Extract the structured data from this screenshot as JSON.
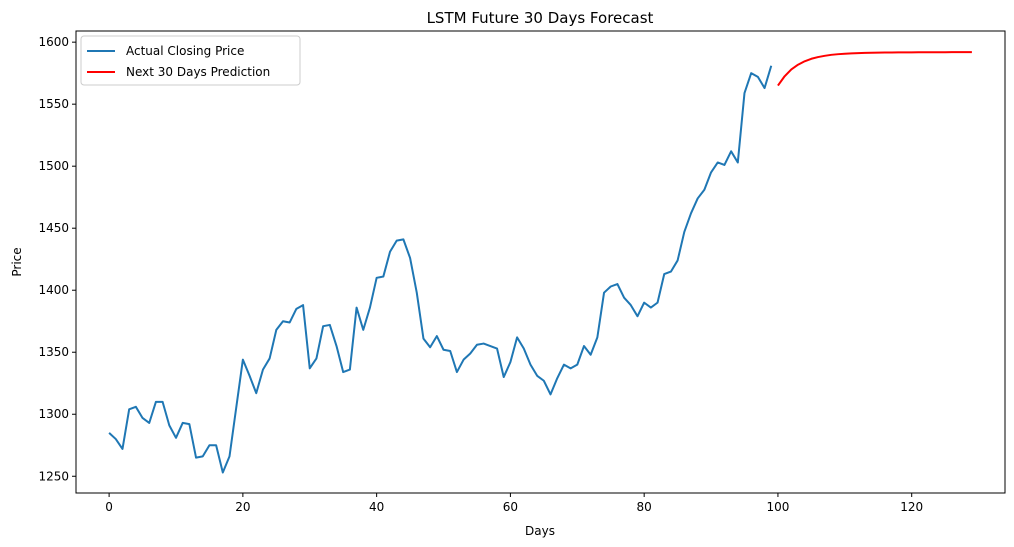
{
  "chart_data": {
    "type": "line",
    "title": "LSTM Future 30 Days Forecast",
    "xlabel": "Days",
    "ylabel": "Price",
    "xlim": [
      -4.95,
      133.95
    ],
    "ylim": [
      1236.5,
      1609.0
    ],
    "xticks": [
      0,
      20,
      40,
      60,
      80,
      100,
      120
    ],
    "yticks": [
      1250,
      1300,
      1350,
      1400,
      1450,
      1500,
      1550,
      1600
    ],
    "grid": false,
    "legend_position": "top-left",
    "series": [
      {
        "name": "Actual Closing Price",
        "color": "#1f77b4",
        "x": [
          0,
          1,
          2,
          3,
          4,
          5,
          6,
          7,
          8,
          9,
          10,
          11,
          12,
          13,
          14,
          15,
          16,
          17,
          18,
          19,
          20,
          21,
          22,
          23,
          24,
          25,
          26,
          27,
          28,
          29,
          30,
          31,
          32,
          33,
          34,
          35,
          36,
          37,
          38,
          39,
          40,
          41,
          42,
          43,
          44,
          45,
          46,
          47,
          48,
          49,
          50,
          51,
          52,
          53,
          54,
          55,
          56,
          57,
          58,
          59,
          60,
          61,
          62,
          63,
          64,
          65,
          66,
          67,
          68,
          69,
          70,
          71,
          72,
          73,
          74,
          75,
          76,
          77,
          78,
          79,
          80,
          81,
          82,
          83,
          84,
          85,
          86,
          87,
          88,
          89,
          90,
          91,
          92,
          93,
          94,
          95,
          96,
          97,
          98,
          99
        ],
        "y": [
          1285,
          1280,
          1272,
          1304,
          1306,
          1297,
          1293,
          1310,
          1310,
          1291,
          1281,
          1293,
          1292,
          1265,
          1266,
          1275,
          1275,
          1253,
          1266,
          1305,
          1344,
          1331,
          1317,
          1336,
          1345,
          1368,
          1375,
          1374,
          1385,
          1388,
          1337,
          1345,
          1371,
          1372,
          1355,
          1334,
          1336,
          1386,
          1368,
          1386,
          1410,
          1411,
          1431,
          1440,
          1441,
          1426,
          1398,
          1361,
          1354,
          1363,
          1352,
          1351,
          1334,
          1344,
          1349,
          1356,
          1357,
          1355,
          1353,
          1330,
          1342,
          1362,
          1353,
          1340,
          1331,
          1327,
          1316,
          1329,
          1340,
          1337,
          1340,
          1355,
          1348,
          1362,
          1398,
          1403,
          1405,
          1394,
          1388,
          1379,
          1390,
          1386,
          1390,
          1413,
          1415,
          1424,
          1447,
          1462,
          1474,
          1481,
          1495,
          1503,
          1501,
          1512,
          1503,
          1559,
          1575,
          1572,
          1563,
          1581
        ]
      },
      {
        "name": "Next 30 Days Prediction",
        "color": "#ff0000",
        "x": [
          100,
          101,
          102,
          103,
          104,
          105,
          106,
          107,
          108,
          109,
          110,
          111,
          112,
          113,
          114,
          115,
          116,
          117,
          118,
          119,
          120,
          121,
          122,
          123,
          124,
          125,
          126,
          127,
          128,
          129
        ],
        "y": [
          1565,
          1572.5,
          1578.0,
          1581.8,
          1584.6,
          1586.6,
          1588.0,
          1589.0,
          1589.8,
          1590.3,
          1590.7,
          1591.0,
          1591.2,
          1591.4,
          1591.5,
          1591.6,
          1591.7,
          1591.7,
          1591.8,
          1591.8,
          1591.8,
          1591.9,
          1591.9,
          1591.9,
          1591.9,
          1591.9,
          1592.0,
          1592.0,
          1592.0,
          1592.0
        ]
      }
    ]
  }
}
